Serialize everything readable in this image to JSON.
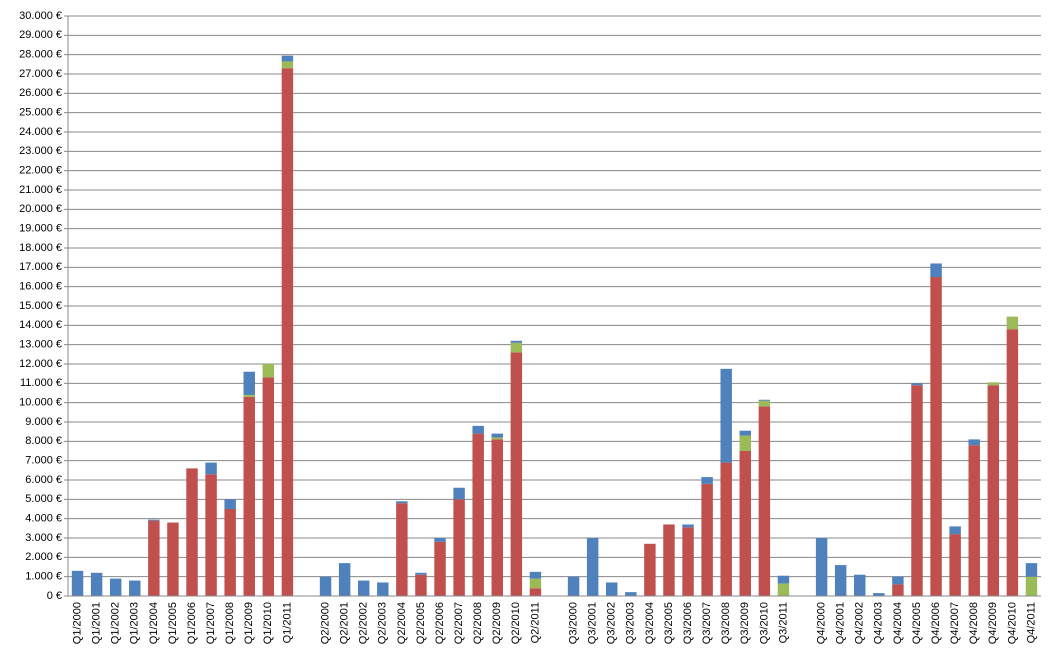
{
  "chart_data": {
    "type": "stacked-bar",
    "categories": [
      "Q1/2000",
      "Q1/2001",
      "Q1/2002",
      "Q1/2003",
      "Q1/2004",
      "Q1/2005",
      "Q1/2006",
      "Q1/2007",
      "Q1/2008",
      "Q1/2009",
      "Q1/2010",
      "Q1/2011",
      null,
      "Q2/2000",
      "Q2/2001",
      "Q2/2002",
      "Q2/2003",
      "Q2/2004",
      "Q2/2005",
      "Q2/2006",
      "Q2/2007",
      "Q2/2008",
      "Q2/2009",
      "Q2/2010",
      "Q2/2011",
      null,
      "Q3/2000",
      "Q3/2001",
      "Q3/2002",
      "Q3/2003",
      "Q3/2004",
      "Q3/2005",
      "Q3/2006",
      "Q3/2007",
      "Q3/2008",
      "Q3/2009",
      "Q3/2010",
      "Q3/2011",
      null,
      "Q4/2000",
      "Q4/2001",
      "Q4/2002",
      "Q4/2003",
      "Q4/2004",
      "Q4/2005",
      "Q4/2006",
      "Q4/2007",
      "Q4/2008",
      "Q4/2009",
      "Q4/2010",
      "Q4/2011"
    ],
    "series": [
      {
        "color": "#c0504d",
        "values": [
          0,
          0,
          0,
          0,
          3900,
          3800,
          6600,
          6300,
          4500,
          10300,
          11300,
          27300,
          null,
          0,
          0,
          0,
          0,
          4800,
          1100,
          2800,
          5000,
          8400,
          8100,
          12600,
          400,
          null,
          0,
          0,
          0,
          0,
          2700,
          3700,
          3550,
          5800,
          6900,
          7500,
          9800,
          0,
          null,
          0,
          0,
          0,
          0,
          600,
          10900,
          16500,
          3200,
          7800,
          10900,
          13800,
          0
        ]
      },
      {
        "color": "#9bbb59",
        "values": [
          0,
          0,
          0,
          0,
          0,
          0,
          0,
          0,
          0,
          100,
          700,
          350,
          null,
          0,
          0,
          0,
          0,
          0,
          0,
          0,
          0,
          0,
          100,
          500,
          500,
          null,
          0,
          0,
          0,
          0,
          0,
          0,
          0,
          0,
          0,
          800,
          300,
          650,
          null,
          0,
          0,
          0,
          0,
          0,
          0,
          0,
          0,
          0,
          150,
          650,
          1000
        ]
      },
      {
        "color": "#4f81bd",
        "values": [
          1300,
          1200,
          900,
          800,
          50,
          0,
          0,
          600,
          500,
          1200,
          0,
          300,
          null,
          1000,
          1700,
          800,
          700,
          100,
          100,
          200,
          600,
          400,
          200,
          100,
          350,
          null,
          1000,
          3000,
          700,
          200,
          0,
          0,
          150,
          350,
          4850,
          250,
          50,
          400,
          null,
          3000,
          1600,
          1100,
          150,
          400,
          100,
          700,
          400,
          300,
          0,
          0,
          700
        ]
      }
    ],
    "ylim": [
      0,
      30000
    ],
    "yticks": [
      {
        "value": 0,
        "label": "0 €"
      },
      {
        "value": 1000,
        "label": "1.000 €"
      },
      {
        "value": 2000,
        "label": "2.000 €"
      },
      {
        "value": 3000,
        "label": "3.000 €"
      },
      {
        "value": 4000,
        "label": "4.000 €"
      },
      {
        "value": 5000,
        "label": "5.000 €"
      },
      {
        "value": 6000,
        "label": "6.000 €"
      },
      {
        "value": 7000,
        "label": "7.000 €"
      },
      {
        "value": 8000,
        "label": "8.000 €"
      },
      {
        "value": 9000,
        "label": "9.000 €"
      },
      {
        "value": 10000,
        "label": "10.000 €"
      },
      {
        "value": 11000,
        "label": "11.000 €"
      },
      {
        "value": 12000,
        "label": "12.000 €"
      },
      {
        "value": 13000,
        "label": "13.000 €"
      },
      {
        "value": 14000,
        "label": "14.000 €"
      },
      {
        "value": 15000,
        "label": "15.000 €"
      },
      {
        "value": 16000,
        "label": "16.000 €"
      },
      {
        "value": 17000,
        "label": "17.000 €"
      },
      {
        "value": 18000,
        "label": "18.000 €"
      },
      {
        "value": 19000,
        "label": "19.000 €"
      },
      {
        "value": 20000,
        "label": "20.000 €"
      },
      {
        "value": 21000,
        "label": "21.000 €"
      },
      {
        "value": 22000,
        "label": "22.000 €"
      },
      {
        "value": 23000,
        "label": "23.000 €"
      },
      {
        "value": 24000,
        "label": "24.000 €"
      },
      {
        "value": 25000,
        "label": "25.000 €"
      },
      {
        "value": 26000,
        "label": "26.000 €"
      },
      {
        "value": 27000,
        "label": "27.000 €"
      },
      {
        "value": 28000,
        "label": "28.000 €"
      },
      {
        "value": 29000,
        "label": "29.000 €"
      },
      {
        "value": 30000,
        "label": "30.000 €"
      }
    ],
    "grid": true
  }
}
